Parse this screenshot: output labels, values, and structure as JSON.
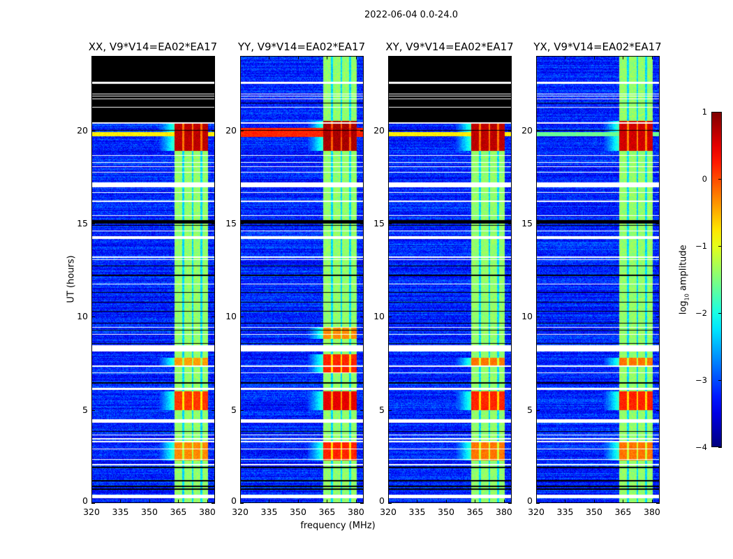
{
  "chart_data": {
    "type": "heatmap",
    "title": "2022-06-04 0.0-24.0",
    "xlabel": "frequency (MHz)",
    "ylabel": "UT (hours)",
    "xlim": [
      320,
      384
    ],
    "ylim": [
      0,
      24
    ],
    "xticks": [
      "320",
      "335",
      "350",
      "365",
      "380"
    ],
    "xtick_values": [
      320,
      335,
      350,
      365,
      380
    ],
    "yticks": [
      "0",
      "5",
      "10",
      "15",
      "20"
    ],
    "ytick_values": [
      0,
      5,
      10,
      15,
      20
    ],
    "colorbar": {
      "label_main": "log",
      "label_sub": "10",
      "label_rest": " amplitude",
      "range": [
        -4,
        1
      ],
      "ticks": [
        "1",
        "0",
        "−1",
        "−2",
        "−3",
        "−4"
      ],
      "tick_values": [
        1,
        0,
        -1,
        -2,
        -3,
        -4
      ],
      "colormap": "jet"
    },
    "signal_band_mhz": [
      363,
      380.5
    ],
    "band_gaps_mhz": [
      367.5,
      372.5,
      377
    ],
    "background_level": -3.2,
    "band_level": -1.4,
    "flagged_white_hours": [
      [
        22.5,
        22.6
      ],
      [
        21.93,
        21.98
      ],
      [
        21.82,
        21.87
      ],
      [
        21.68,
        21.73
      ],
      [
        21.22,
        21.27
      ],
      [
        20.37,
        20.42
      ],
      [
        18.62,
        18.68
      ],
      [
        18.25,
        18.3
      ],
      [
        18.03,
        18.08
      ],
      [
        17.73,
        17.78
      ],
      [
        16.96,
        17.2
      ],
      [
        16.64,
        16.69
      ],
      [
        16.18,
        16.23
      ],
      [
        15.4,
        15.45
      ],
      [
        14.58,
        14.63
      ],
      [
        14.18,
        14.33
      ],
      [
        13.18,
        13.23
      ],
      [
        13.04,
        13.09
      ],
      [
        11.73,
        11.78
      ],
      [
        9.4,
        9.45
      ],
      [
        9.02,
        9.07
      ],
      [
        8.14,
        8.48
      ],
      [
        7.33,
        7.38
      ],
      [
        6.96,
        7.01
      ],
      [
        6.08,
        6.2
      ],
      [
        4.3,
        4.5
      ],
      [
        3.62,
        3.67
      ],
      [
        3.43,
        3.48
      ],
      [
        3.28,
        3.33
      ],
      [
        2.87,
        2.92
      ],
      [
        2.31,
        2.36
      ],
      [
        2.04,
        2.09
      ],
      [
        0.26,
        0.45
      ]
    ],
    "flagged_black_hours": [
      [
        21.44,
        21.5
      ],
      [
        15.0,
        15.2
      ],
      [
        14.88,
        14.93
      ],
      [
        12.7,
        12.75
      ],
      [
        12.2,
        12.26
      ],
      [
        11.28,
        11.32
      ],
      [
        10.75,
        10.8
      ],
      [
        10.26,
        10.31
      ],
      [
        9.62,
        9.67
      ],
      [
        9.25,
        9.3
      ],
      [
        8.54,
        8.59
      ],
      [
        6.43,
        6.48
      ],
      [
        3.81,
        3.86
      ],
      [
        1.89,
        1.94
      ],
      [
        1.18,
        1.22
      ],
      [
        0.88,
        0.93
      ],
      [
        0.73,
        0.78
      ],
      [
        19.97,
        20.02
      ]
    ],
    "panels": [
      {
        "title": "XX, V9*V14=EA02*EA17",
        "no_data_above_hour": 20.45,
        "strong_periods": [
          [
            18.9,
            20.5,
            0.7
          ],
          [
            5.0,
            6.0,
            0.1
          ],
          [
            2.3,
            3.3,
            -0.3
          ],
          [
            7.4,
            7.8,
            -0.4
          ]
        ],
        "broadband_hours": [
          [
            19.7,
            19.9,
            -0.8
          ]
        ]
      },
      {
        "title": "YY, V9*V14=EA02*EA17",
        "no_data_above_hour": null,
        "strong_periods": [
          [
            18.9,
            20.5,
            0.8
          ],
          [
            5.0,
            6.0,
            0.5
          ],
          [
            2.3,
            3.3,
            0.2
          ],
          [
            7.0,
            8.0,
            0.2
          ],
          [
            8.8,
            9.4,
            -0.3
          ]
        ],
        "broadband_hours": [
          [
            19.66,
            20.15,
            0.2
          ]
        ]
      },
      {
        "title": "XY, V9*V14=EA02*EA17",
        "no_data_above_hour": 20.45,
        "strong_periods": [
          [
            18.9,
            20.5,
            0.7
          ],
          [
            5.0,
            6.0,
            0.2
          ],
          [
            2.3,
            3.3,
            -0.2
          ],
          [
            7.4,
            7.8,
            -0.2
          ]
        ],
        "broadband_hours": [
          [
            19.7,
            19.9,
            -0.8
          ]
        ]
      },
      {
        "title": "YX, V9*V14=EA02*EA17",
        "no_data_above_hour": null,
        "strong_periods": [
          [
            18.9,
            20.5,
            0.6
          ],
          [
            5.0,
            6.0,
            0.2
          ],
          [
            2.3,
            3.3,
            -0.2
          ],
          [
            7.4,
            7.8,
            -0.2
          ]
        ],
        "broadband_hours": [
          [
            19.7,
            19.9,
            -1.6
          ]
        ]
      }
    ]
  }
}
